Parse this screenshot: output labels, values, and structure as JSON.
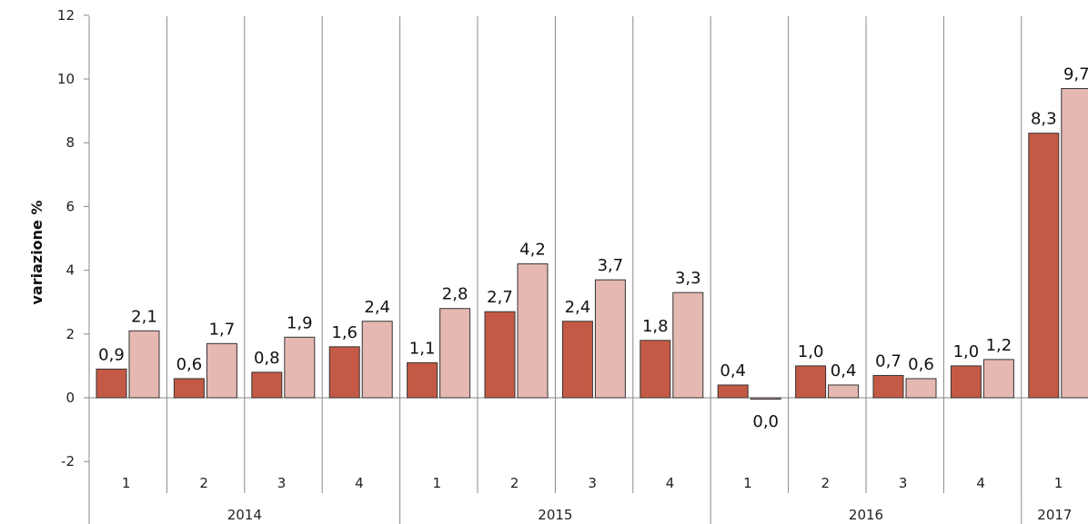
{
  "chart_data": {
    "type": "bar",
    "ylabel": "variazione %",
    "ylim": [
      -3,
      12
    ],
    "yticks": [
      -2,
      0,
      2,
      4,
      6,
      8,
      10,
      12
    ],
    "ytick_labels": [
      "-2",
      "0",
      "2",
      "4",
      "6",
      "8",
      "10",
      "12"
    ],
    "quarters": [
      "1",
      "2",
      "3",
      "4",
      "1",
      "2",
      "3",
      "4",
      "1",
      "2",
      "3",
      "4",
      "1"
    ],
    "years": [
      {
        "label": "2014",
        "quarters": 4
      },
      {
        "label": "2015",
        "quarters": 4
      },
      {
        "label": "2016",
        "quarters": 4
      },
      {
        "label": "2017",
        "quarters": 1
      }
    ],
    "series": [
      {
        "color": "#c45a45",
        "values": [
          0.9,
          0.6,
          0.8,
          1.6,
          1.1,
          2.7,
          2.4,
          1.8,
          0.4,
          1.0,
          0.7,
          1.0,
          8.3
        ],
        "labels": [
          "0,9",
          "0,6",
          "0,8",
          "1,6",
          "1,1",
          "2,7",
          "2,4",
          "1,8",
          "0,4",
          "1,0",
          "0,7",
          "1,0",
          "8,3"
        ]
      },
      {
        "color": "#e5b8b2",
        "values": [
          2.1,
          1.7,
          1.9,
          2.4,
          2.8,
          4.2,
          3.7,
          3.3,
          0.0,
          0.4,
          0.6,
          1.2,
          9.7
        ],
        "labels": [
          "2,1",
          "1,7",
          "1,9",
          "2,4",
          "2,8",
          "4,2",
          "3,7",
          "3,3",
          "0,0",
          "0,4",
          "0,6",
          "1,2",
          "9,7"
        ]
      }
    ],
    "grid": false,
    "legend": "none"
  }
}
